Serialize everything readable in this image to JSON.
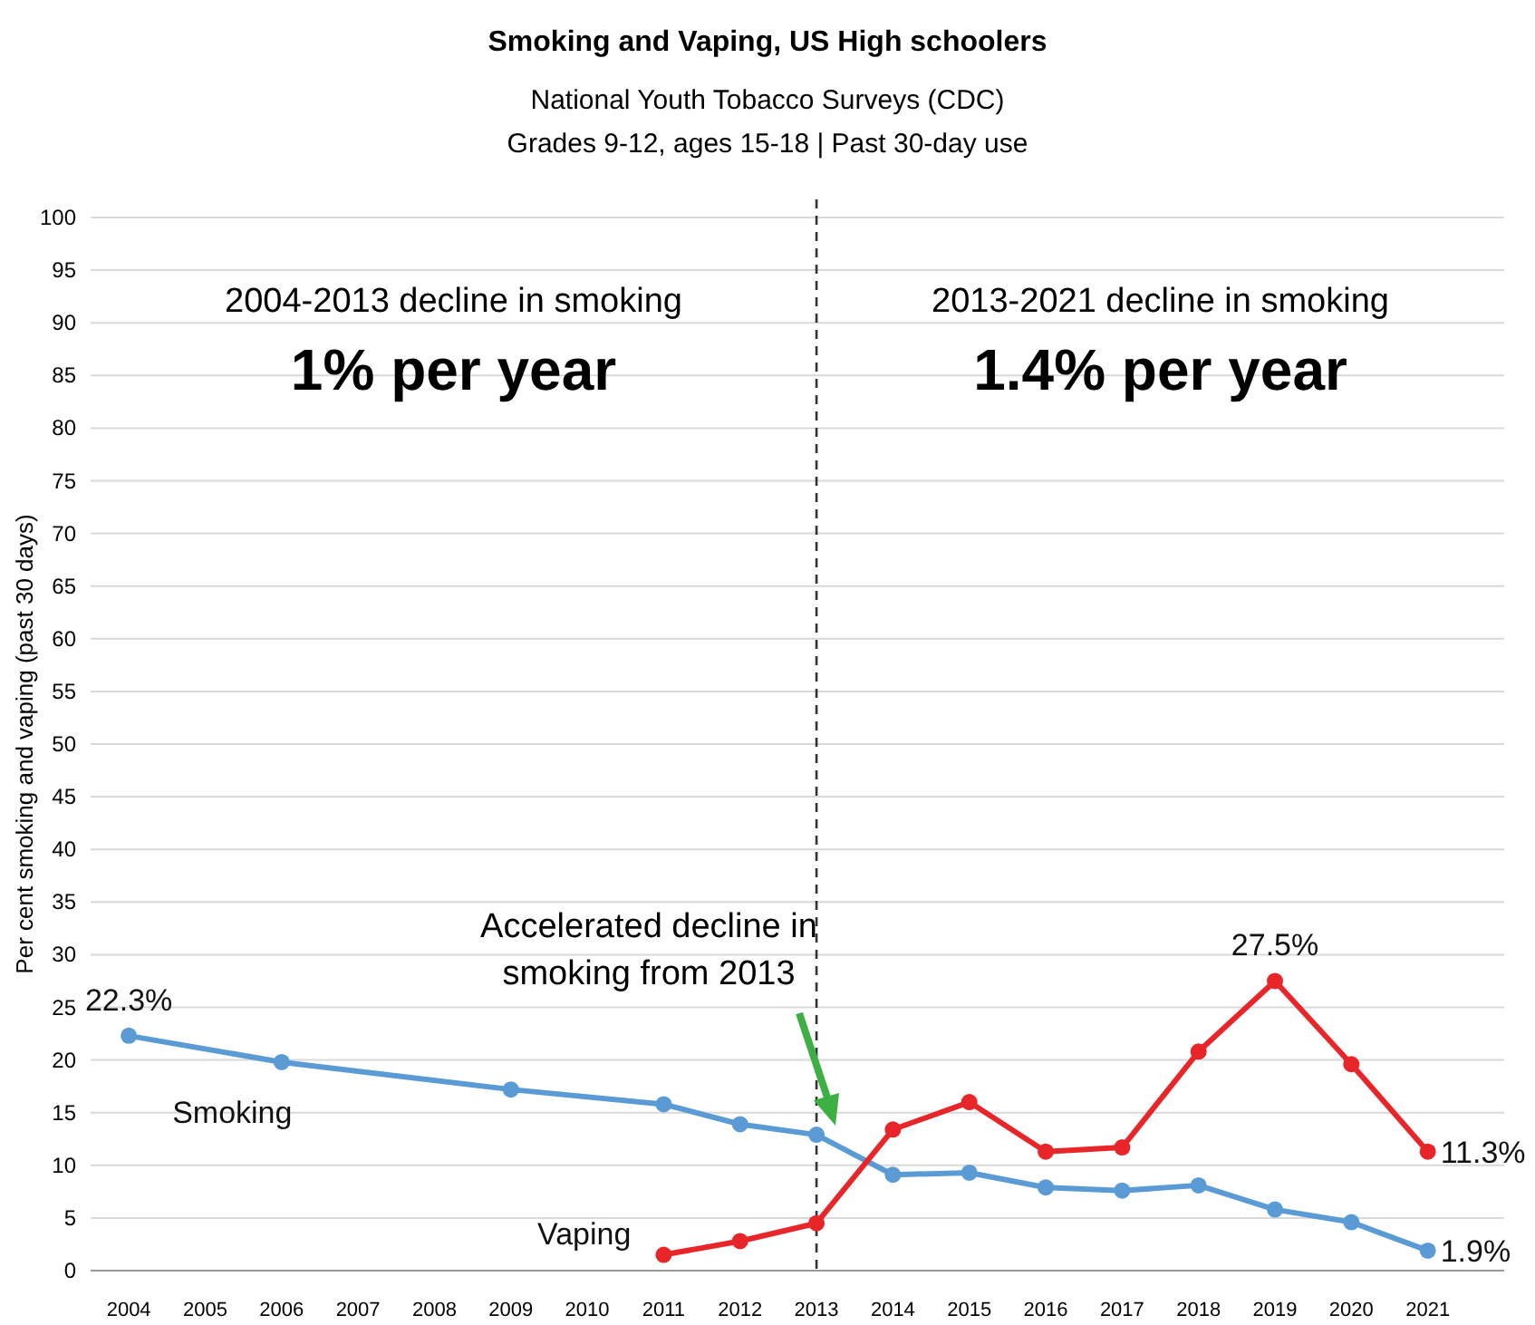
{
  "chart_data": {
    "type": "line",
    "title": "Smoking and Vaping, US High schoolers",
    "subtitle": "National Youth Tobacco Surveys (CDC)\nGrades 9-12, ages 15-18 | Past 30-day use",
    "ylabel": "Per cent smoking and vaping (past 30 days)",
    "xlim": [
      2003.5,
      2022
    ],
    "xticks": [
      2004,
      2005,
      2006,
      2007,
      2008,
      2009,
      2010,
      2011,
      2012,
      2013,
      2014,
      2015,
      2016,
      2017,
      2018,
      2019,
      2020,
      2021
    ],
    "ylim": [
      0,
      100
    ],
    "yticks": [
      0,
      5,
      10,
      15,
      20,
      25,
      30,
      35,
      40,
      45,
      50,
      55,
      60,
      65,
      70,
      75,
      80,
      85,
      90,
      95,
      100
    ],
    "grid": "y",
    "marker": "circle",
    "line_style": "solid",
    "series": [
      {
        "name": "Smoking",
        "color": "#5b9bd5",
        "x": [
          2004,
          2006,
          2009,
          2011,
          2012,
          2013,
          2014,
          2015,
          2016,
          2017,
          2018,
          2019,
          2020,
          2021
        ],
        "values": [
          22.3,
          19.8,
          17.2,
          15.8,
          13.9,
          12.9,
          9.1,
          9.3,
          7.9,
          7.6,
          8.1,
          5.8,
          4.6,
          1.9
        ],
        "value_labels": [
          "22.3%",
          null,
          null,
          null,
          null,
          null,
          null,
          null,
          null,
          null,
          null,
          null,
          null,
          "1.9%"
        ]
      },
      {
        "name": "Vaping",
        "color": "#e8262a",
        "x": [
          2011,
          2012,
          2013,
          2014,
          2015,
          2016,
          2017,
          2018,
          2019,
          2020,
          2021
        ],
        "values": [
          1.5,
          2.8,
          4.5,
          13.4,
          16.0,
          11.3,
          11.7,
          20.8,
          27.5,
          19.6,
          11.3
        ],
        "value_labels": [
          null,
          null,
          null,
          null,
          null,
          null,
          null,
          null,
          "27.5%",
          null,
          "11.3%"
        ]
      }
    ],
    "ref_lines": [
      {
        "axis": "x",
        "value": 2013,
        "color": "#333333",
        "line_style": "dashed"
      }
    ],
    "annotations": [
      "2004-2013 decline in smoking",
      "1% per year",
      "2013-2021 decline in smoking",
      "1.4% per year",
      "Accelerated decline in smoking from 2013"
    ]
  }
}
